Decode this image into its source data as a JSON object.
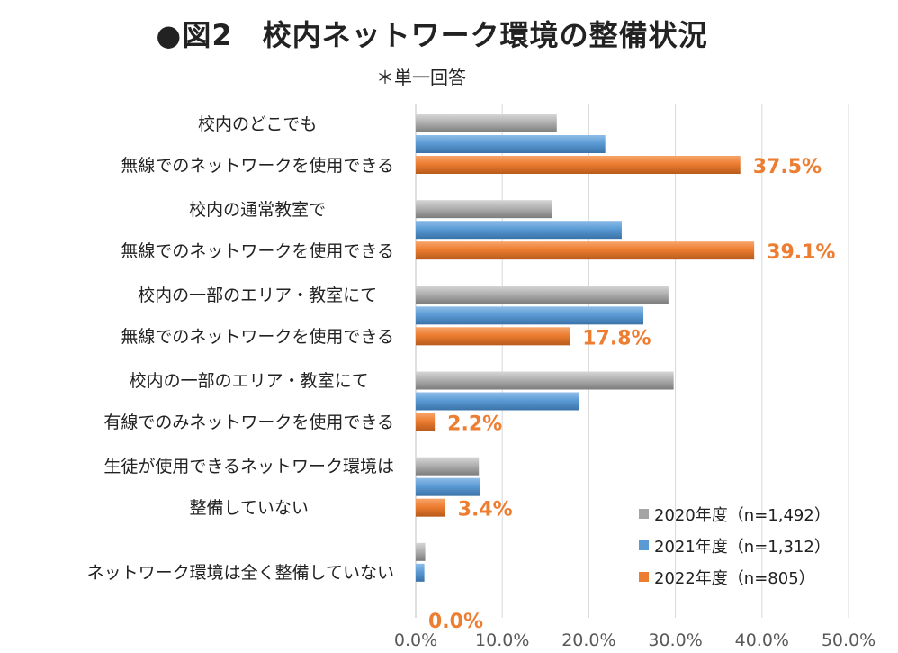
{
  "title": "●図2　校内ネットワーク環境の整備状況",
  "subtitle": "＊単一回答",
  "colors": {
    "s2020": "#A5A5A5",
    "s2021": "#5B9BD5",
    "s2022": "#ED7D31",
    "grid": "#D9D9D9"
  },
  "chart_data": {
    "type": "bar",
    "orientation": "horizontal",
    "categories": [
      [
        "校内のどこでも",
        "無線でのネットワークを使用できる"
      ],
      [
        "校内の通常教室で",
        "無線でのネットワークを使用できる"
      ],
      [
        "校内の一部のエリア・教室にて",
        "無線でのネットワークを使用できる"
      ],
      [
        "校内の一部のエリア・教室にて",
        "有線でのみネットワークを使用できる"
      ],
      [
        "生徒が使用できるネットワーク環境は",
        "整備していない"
      ],
      [
        "ネットワーク環境は全く整備していない"
      ]
    ],
    "series": [
      {
        "name": "2020年度（n=1,492）",
        "color": "#A5A5A5",
        "values": [
          16.3,
          15.8,
          29.2,
          29.8,
          7.3,
          1.1
        ]
      },
      {
        "name": "2021年度（n=1,312）",
        "color": "#5B9BD5",
        "values": [
          21.9,
          23.8,
          26.3,
          18.9,
          7.4,
          1.0
        ]
      },
      {
        "name": "2022年度（n=805）",
        "color": "#ED7D31",
        "values": [
          37.5,
          39.1,
          17.8,
          2.2,
          3.4,
          0.0
        ],
        "data_labels": [
          "37.5%",
          "39.1%",
          "17.8%",
          "2.2%",
          "3.4%",
          "0.0%"
        ]
      }
    ],
    "xlim": [
      0,
      50
    ],
    "xticks": [
      "0.0%",
      "10.0%",
      "20.0%",
      "30.0%",
      "40.0%",
      "50.0%"
    ],
    "grid": true,
    "legend_position": "bottom-right"
  }
}
